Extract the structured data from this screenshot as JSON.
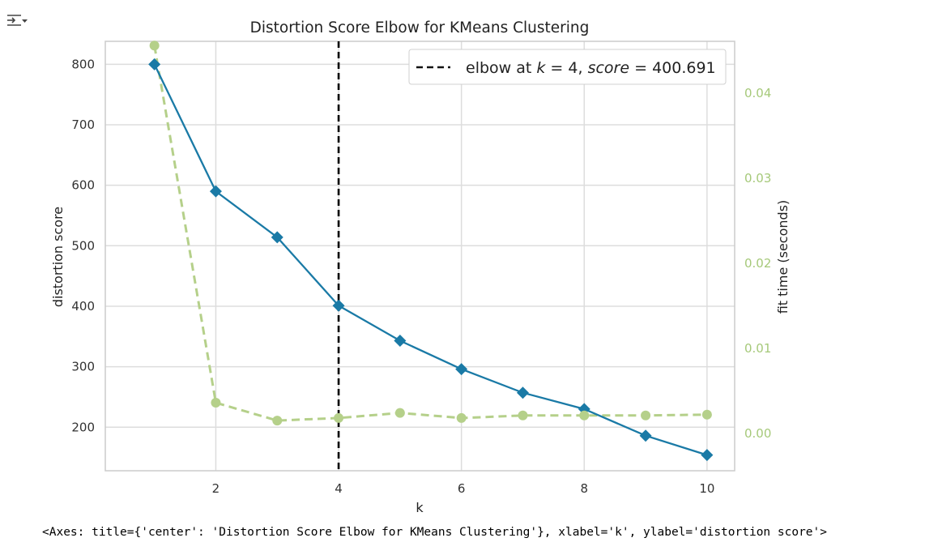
{
  "toolbar": {
    "toggle_icon": "output-toggle-icon"
  },
  "chart_data": {
    "type": "line",
    "title": "Distortion Score Elbow for KMeans Clustering",
    "xlabel": "k",
    "ylabel": "distortion score",
    "y2label": "fit time (seconds)",
    "x": [
      1,
      2,
      3,
      4,
      5,
      6,
      7,
      8,
      9,
      10
    ],
    "xlim": [
      0.2,
      10.45
    ],
    "ylim": [
      128,
      838
    ],
    "y2lim": [
      -0.0045,
      0.046
    ],
    "xticks": [
      2,
      4,
      6,
      8,
      10
    ],
    "yticks": [
      200,
      300,
      400,
      500,
      600,
      700,
      800
    ],
    "y2ticks": [
      0.0,
      0.01,
      0.02,
      0.03,
      0.04
    ],
    "y2ticklabels": [
      "0.00",
      "0.01",
      "0.02",
      "0.03",
      "0.04"
    ],
    "grid": true,
    "series": [
      {
        "values": [
          800,
          590,
          514,
          401,
          343,
          296,
          257,
          230,
          186,
          154
        ],
        "color": "#1a7aa6",
        "marker": "diamond",
        "axis": "left"
      },
      {
        "values": [
          0.0455,
          0.0035,
          0.0014,
          0.0017,
          0.0023,
          0.0017,
          0.002,
          0.002,
          0.002,
          0.0021
        ],
        "color": "#b5d08a",
        "marker": "circle",
        "dashed": true,
        "axis": "right"
      }
    ],
    "elbow": {
      "k": 4,
      "score": 400.691,
      "color": "#000000"
    },
    "legend": {
      "placement": "top-right",
      "label_prefix": "elbow at ",
      "k_symbol": "k",
      "equals": " = ",
      "separator": ", ",
      "score_symbol": "score",
      "score_text": "400.691"
    },
    "right_axis_color": "#a6c97a"
  },
  "output_repr": "<Axes: title={'center': 'Distortion Score Elbow for KMeans Clustering'}, xlabel='k', ylabel='distortion score'>"
}
